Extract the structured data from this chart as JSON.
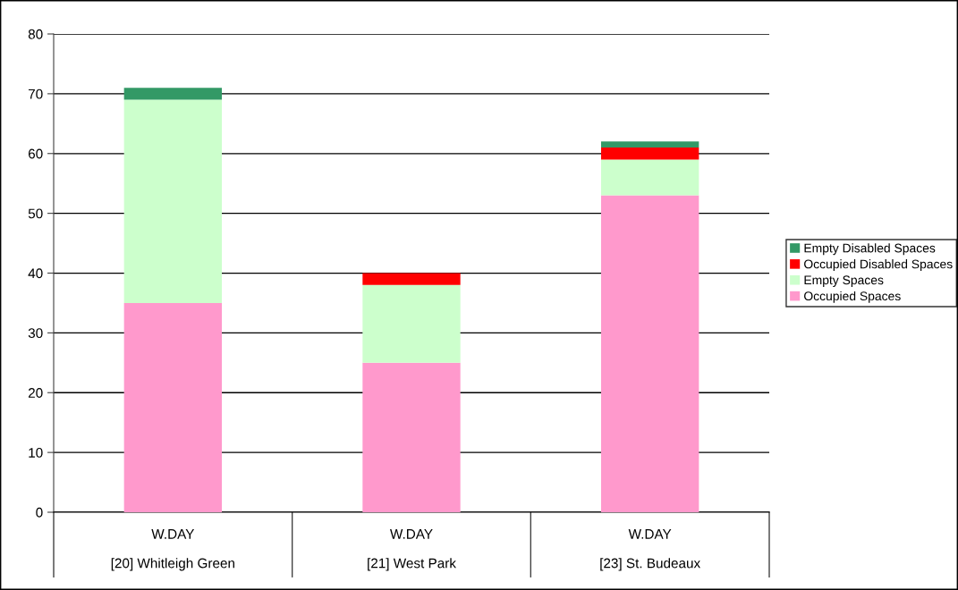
{
  "chart_data": {
    "type": "bar",
    "stacked": true,
    "categories": [
      "W.DAY\n[20] Whitleigh Green",
      "W.DAY\n[21] West Park",
      "W.DAY\n[23] St. Budeaux"
    ],
    "series": [
      {
        "name": "Occupied Spaces",
        "color": "#ff99cc",
        "values": [
          35,
          25,
          53
        ]
      },
      {
        "name": "Empty Spaces",
        "color": "#ccffcc",
        "values": [
          34,
          13,
          6
        ]
      },
      {
        "name": "Occupied Disabled Spaces",
        "color": "#ff0000",
        "values": [
          0,
          2,
          2
        ]
      },
      {
        "name": "Empty Disabled Spaces",
        "color": "#339966",
        "values": [
          2,
          0,
          1
        ]
      }
    ],
    "ylim": [
      0,
      80
    ],
    "yticks": [
      0,
      10,
      20,
      30,
      40,
      50,
      60,
      70,
      80
    ],
    "grid": "y",
    "legend": "right"
  }
}
